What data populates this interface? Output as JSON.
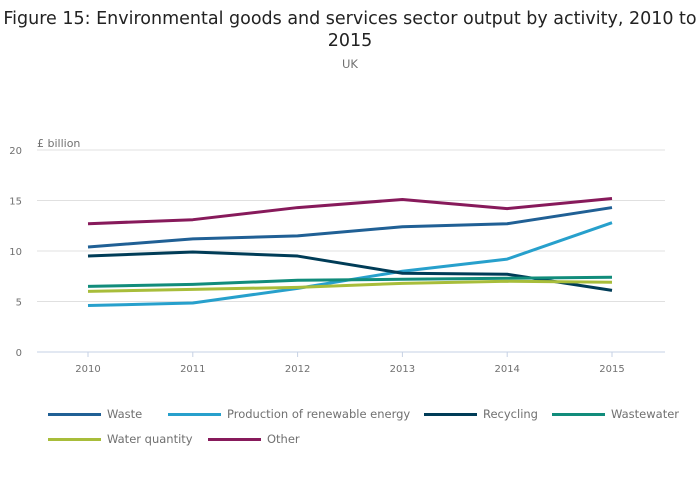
{
  "chart_data": {
    "type": "line",
    "title": "Figure 15: Environmental goods and services sector output by activity, 2010 to 2015",
    "subtitle": "UK",
    "xlabel": "",
    "ylabel": "£ billion",
    "x": [
      "2010",
      "2011",
      "2012",
      "2013",
      "2014",
      "2015"
    ],
    "ylim": [
      0,
      20
    ],
    "yticks": [
      "0",
      "5",
      "10",
      "15",
      "20"
    ],
    "grid": true,
    "legend_position": "bottom",
    "series": [
      {
        "name": "Waste",
        "color": "#206095",
        "values": [
          10.4,
          11.2,
          11.5,
          12.4,
          12.7,
          14.3
        ]
      },
      {
        "name": "Production of renewable energy",
        "color": "#27a0cc",
        "values": [
          4.6,
          4.85,
          6.3,
          8.0,
          9.2,
          12.8
        ]
      },
      {
        "name": "Recycling",
        "color": "#003c57",
        "values": [
          9.5,
          9.9,
          9.5,
          7.8,
          7.7,
          6.1
        ]
      },
      {
        "name": "Wastewater",
        "color": "#118c7b",
        "values": [
          6.5,
          6.7,
          7.1,
          7.2,
          7.3,
          7.4
        ]
      },
      {
        "name": "Water quantity",
        "color": "#a8bd3a",
        "values": [
          6.0,
          6.2,
          6.4,
          6.8,
          7.0,
          6.9
        ]
      },
      {
        "name": "Other",
        "color": "#871a5b",
        "values": [
          12.7,
          13.1,
          14.3,
          15.1,
          14.2,
          15.2
        ]
      }
    ]
  }
}
